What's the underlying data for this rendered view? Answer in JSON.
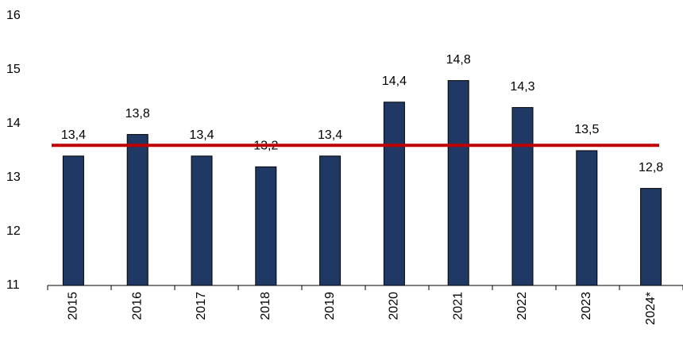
{
  "chart_data": {
    "type": "bar",
    "categories": [
      "2015",
      "2016",
      "2017",
      "2018",
      "2019",
      "2020",
      "2021",
      "2022",
      "2023",
      "2024*"
    ],
    "values": [
      13.4,
      13.8,
      13.4,
      13.2,
      13.4,
      14.4,
      14.8,
      14.3,
      13.5,
      12.8
    ],
    "value_labels": [
      "13,4",
      "13,8",
      "13,4",
      "13,2",
      "13,4",
      "14,4",
      "14,8",
      "14,3",
      "13,5",
      "12,8"
    ],
    "color": "#1f3864",
    "reference_line": {
      "value": 13.6,
      "color": "#c00000"
    },
    "ylim": [
      11,
      16
    ],
    "yticks": [
      11,
      12,
      13,
      14,
      15,
      16
    ],
    "grid": false
  }
}
